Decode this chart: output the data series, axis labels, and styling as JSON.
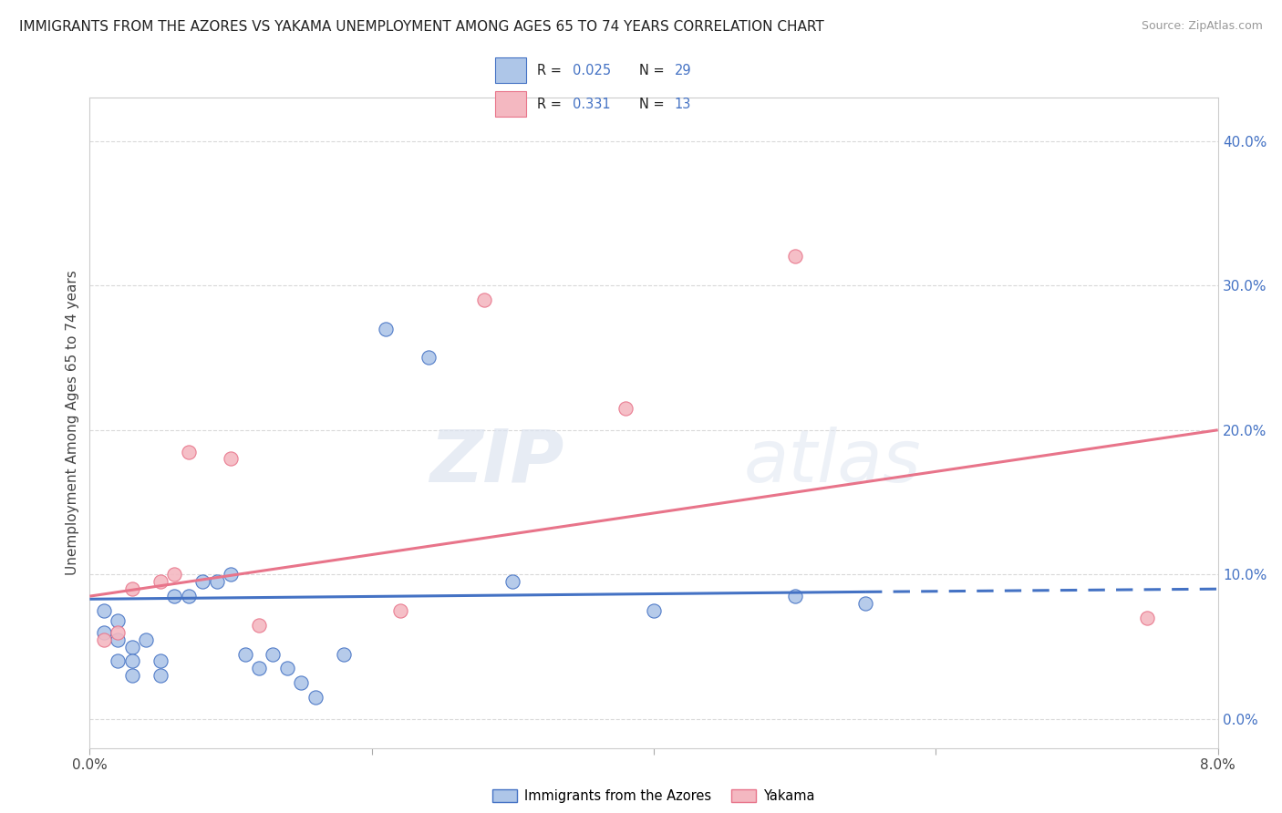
{
  "title": "IMMIGRANTS FROM THE AZORES VS YAKAMA UNEMPLOYMENT AMONG AGES 65 TO 74 YEARS CORRELATION CHART",
  "source": "Source: ZipAtlas.com",
  "ylabel": "Unemployment Among Ages 65 to 74 years",
  "ytick_values": [
    0.0,
    0.1,
    0.2,
    0.3,
    0.4
  ],
  "xlim": [
    0.0,
    0.08
  ],
  "ylim": [
    -0.02,
    0.43
  ],
  "legend_entries": [
    {
      "label": "Immigrants from the Azores",
      "color": "#aec6e8",
      "R": "0.025",
      "N": "29"
    },
    {
      "label": "Yakama",
      "color": "#f4b8c1",
      "R": "0.331",
      "N": "13"
    }
  ],
  "blue_scatter_x": [
    0.001,
    0.001,
    0.002,
    0.002,
    0.002,
    0.003,
    0.003,
    0.003,
    0.004,
    0.005,
    0.005,
    0.006,
    0.007,
    0.008,
    0.009,
    0.01,
    0.011,
    0.012,
    0.013,
    0.014,
    0.015,
    0.016,
    0.018,
    0.021,
    0.024,
    0.03,
    0.04,
    0.05,
    0.055
  ],
  "blue_scatter_y": [
    0.075,
    0.06,
    0.055,
    0.04,
    0.068,
    0.05,
    0.04,
    0.03,
    0.055,
    0.04,
    0.03,
    0.085,
    0.085,
    0.095,
    0.095,
    0.1,
    0.045,
    0.035,
    0.045,
    0.035,
    0.025,
    0.015,
    0.045,
    0.27,
    0.25,
    0.095,
    0.075,
    0.085,
    0.08
  ],
  "pink_scatter_x": [
    0.001,
    0.002,
    0.003,
    0.005,
    0.006,
    0.007,
    0.01,
    0.012,
    0.022,
    0.028,
    0.038,
    0.05,
    0.075
  ],
  "pink_scatter_y": [
    0.055,
    0.06,
    0.09,
    0.095,
    0.1,
    0.185,
    0.18,
    0.065,
    0.075,
    0.29,
    0.215,
    0.32,
    0.07
  ],
  "blue_line_x0": 0.0,
  "blue_line_x1": 0.055,
  "blue_line_x2": 0.08,
  "blue_line_y0": 0.083,
  "blue_line_y1": 0.088,
  "blue_line_y2": 0.09,
  "pink_line_x0": 0.0,
  "pink_line_x1": 0.08,
  "pink_line_y0": 0.085,
  "pink_line_y1": 0.2,
  "blue_color": "#4472c4",
  "pink_color": "#e8748a",
  "blue_scatter_color": "#aec6e8",
  "pink_scatter_color": "#f4b8c1",
  "grid_color": "#d0d0d0",
  "watermark_zip": "ZIP",
  "watermark_atlas": "atlas",
  "background_color": "#ffffff",
  "title_fontsize": 11,
  "source_fontsize": 9,
  "legend_R_blue": "0.025",
  "legend_N_blue": "29",
  "legend_R_pink": "0.331",
  "legend_N_pink": "13"
}
